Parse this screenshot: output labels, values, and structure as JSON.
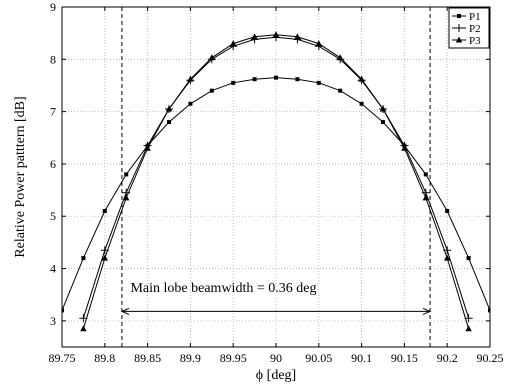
{
  "chart_data": {
    "type": "line",
    "title": "",
    "xlabel": "ϕ [deg]",
    "ylabel": "Relative Power patttern [dB]",
    "xlim": [
      89.75,
      90.25
    ],
    "ylim": [
      2.5,
      9
    ],
    "xticks": [
      89.75,
      89.8,
      89.85,
      89.9,
      89.95,
      90,
      90.05,
      90.1,
      90.15,
      90.2,
      90.25
    ],
    "xtick_labels": [
      "89.75",
      "89.8",
      "89.85",
      "89.9",
      "89.95",
      "90",
      "90.05",
      "90.1",
      "90.15",
      "90.2",
      "90.25"
    ],
    "yticks": [
      3,
      4,
      5,
      6,
      7,
      8,
      9
    ],
    "ytick_labels": [
      "3",
      "4",
      "5",
      "6",
      "7",
      "8",
      "9"
    ],
    "grid": true,
    "legend_position": "top-right",
    "series": [
      {
        "name": "P1",
        "marker": "square",
        "x": [
          89.75,
          89.775,
          89.8,
          89.825,
          89.85,
          89.875,
          89.9,
          89.925,
          89.95,
          89.975,
          90,
          90.025,
          90.05,
          90.075,
          90.1,
          90.125,
          90.15,
          90.175,
          90.2,
          90.225,
          90.25
        ],
        "y": [
          3.2,
          4.2,
          5.1,
          5.8,
          6.35,
          6.8,
          7.15,
          7.4,
          7.55,
          7.62,
          7.65,
          7.62,
          7.55,
          7.4,
          7.15,
          6.8,
          6.35,
          5.8,
          5.1,
          4.2,
          3.2
        ]
      },
      {
        "name": "P2",
        "marker": "plus",
        "x": [
          89.775,
          89.8,
          89.825,
          89.85,
          89.875,
          89.9,
          89.925,
          89.95,
          89.975,
          90,
          90.025,
          90.05,
          90.075,
          90.1,
          90.125,
          90.15,
          90.175,
          90.2,
          90.225
        ],
        "y": [
          3.05,
          4.35,
          5.45,
          6.35,
          7.05,
          7.6,
          8.0,
          8.25,
          8.38,
          8.42,
          8.38,
          8.25,
          8.0,
          7.6,
          7.05,
          6.35,
          5.45,
          4.35,
          3.05
        ]
      },
      {
        "name": "P3",
        "marker": "triangle",
        "x": [
          89.775,
          89.8,
          89.825,
          89.85,
          89.875,
          89.9,
          89.925,
          89.95,
          89.975,
          90,
          90.025,
          90.05,
          90.075,
          90.1,
          90.125,
          90.15,
          90.175,
          90.2,
          90.225
        ],
        "y": [
          2.85,
          4.2,
          5.35,
          6.3,
          7.05,
          7.62,
          8.03,
          8.3,
          8.43,
          8.47,
          8.43,
          8.3,
          8.03,
          7.62,
          7.05,
          6.3,
          5.35,
          4.2,
          2.85
        ]
      }
    ],
    "vlines": [
      89.82,
      90.18
    ],
    "annotation": {
      "text": "Main lobe beamwidth = 0.36 deg",
      "arrow_from": 89.82,
      "arrow_to": 90.18,
      "arrow_y": 3.18,
      "text_x": 89.83,
      "text_y": 3.55
    }
  }
}
